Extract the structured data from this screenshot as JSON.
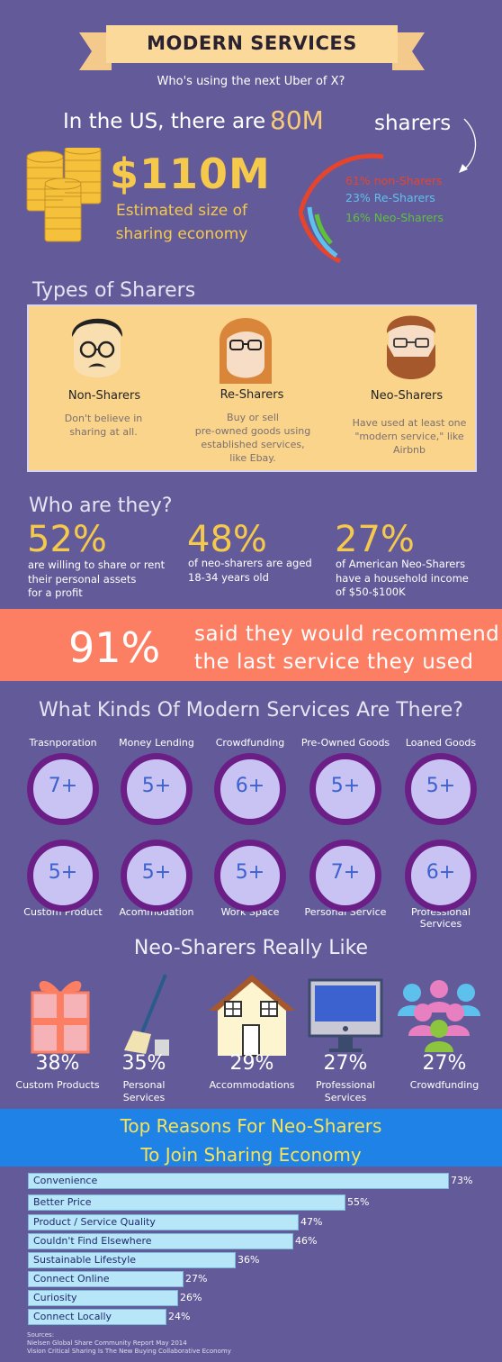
{
  "header": {
    "title": "MODERN SERVICES",
    "subtitle": "Who's using the next Uber of X?"
  },
  "us": {
    "prefix": "In the US, there are",
    "count": "80M",
    "suffix": "sharers",
    "amount": "$110M",
    "amount_caption_1": "Estimated size of",
    "amount_caption_2": "sharing economy",
    "breakdown": [
      {
        "label": "61% non-Sharers",
        "value": 61,
        "color": "#e8442c"
      },
      {
        "label": "23% Re-Sharers",
        "value": 23,
        "color": "#5ec0ec"
      },
      {
        "label": "16% Neo-Sharers",
        "value": 16,
        "color": "#5fc03a"
      }
    ]
  },
  "types": {
    "heading": "Types of Sharers",
    "items": [
      {
        "name": "Non-Sharers",
        "desc": [
          "Don't believe in",
          "sharing at all."
        ]
      },
      {
        "name": "Re-Sharers",
        "desc": [
          "Buy or sell",
          "pre-owned goods using",
          "established services,",
          "like Ebay."
        ]
      },
      {
        "name": "Neo-Sharers",
        "desc": [
          "Have used at least one",
          "\"modern service,\" like",
          "Airbnb"
        ]
      }
    ]
  },
  "who": {
    "heading": "Who are they?",
    "stats": [
      {
        "pct": "52%",
        "lines": [
          "are willing to share or rent",
          "their personal assets",
          "for a profit"
        ]
      },
      {
        "pct": "48%",
        "lines": [
          "of neo-sharers are aged",
          "18-34 years old"
        ]
      },
      {
        "pct": "27%",
        "lines": [
          "of American Neo-Sharers",
          "have a household income",
          "of $50-$100K"
        ]
      }
    ]
  },
  "recommend": {
    "pct": "91%",
    "line1": "said they would recommend",
    "line2": "the last service they used"
  },
  "kinds": {
    "heading": "What Kinds Of Modern Services Are There?",
    "row1": [
      {
        "label": "Trasnporation",
        "value": "7+"
      },
      {
        "label": "Money Lending",
        "value": "5+"
      },
      {
        "label": "Crowdfunding",
        "value": "6+"
      },
      {
        "label": "Pre-Owned Goods",
        "value": "5+"
      },
      {
        "label": "Loaned Goods",
        "value": "5+"
      }
    ],
    "row2": [
      {
        "label": "Custom Product",
        "value": "5+"
      },
      {
        "label": "Acommodation",
        "value": "5+"
      },
      {
        "label": "Work Space",
        "value": "5+"
      },
      {
        "label": "Personal Service",
        "value": "7+"
      },
      {
        "label": "Professional Services",
        "value": "6+"
      }
    ]
  },
  "likes": {
    "heading": "Neo-Sharers Really Like",
    "items": [
      {
        "pct": "38%",
        "label": [
          "Custom Products"
        ],
        "icon": "gift-icon"
      },
      {
        "pct": "35%",
        "label": [
          "Personal",
          "Services"
        ],
        "icon": "broom-icon"
      },
      {
        "pct": "29%",
        "label": [
          "Accommodations"
        ],
        "icon": "house-icon"
      },
      {
        "pct": "27%",
        "label": [
          "Professional",
          "Services"
        ],
        "icon": "monitor-icon"
      },
      {
        "pct": "27%",
        "label": [
          "Crowdfunding"
        ],
        "icon": "crowd-icon"
      }
    ]
  },
  "reasons": {
    "heading_1": "Top Reasons For Neo-Sharers",
    "heading_2": "To Join Sharing Economy",
    "items": [
      {
        "label": "Convenience",
        "value": 73,
        "text": "73%"
      },
      {
        "label": "Better Price",
        "value": 55,
        "text": "55%"
      },
      {
        "label": "Product / Service Quality",
        "value": 47,
        "text": "47%"
      },
      {
        "label": "Couldn't Find Elsewhere",
        "value": 46,
        "text": "46%"
      },
      {
        "label": "Sustainable Lifestyle",
        "value": 36,
        "text": "36%"
      },
      {
        "label": "Connect Online",
        "value": 27,
        "text": "27%"
      },
      {
        "label": "Curiosity",
        "value": 26,
        "text": "26%"
      },
      {
        "label": "Connect Locally",
        "value": 24,
        "text": "24%"
      }
    ]
  },
  "sources": {
    "title": "Sources:",
    "line1": "Nielsen Global Share Community Report May 2014",
    "line2": "Vision Critical Sharing Is The New Buying Collaborative Economy"
  }
}
